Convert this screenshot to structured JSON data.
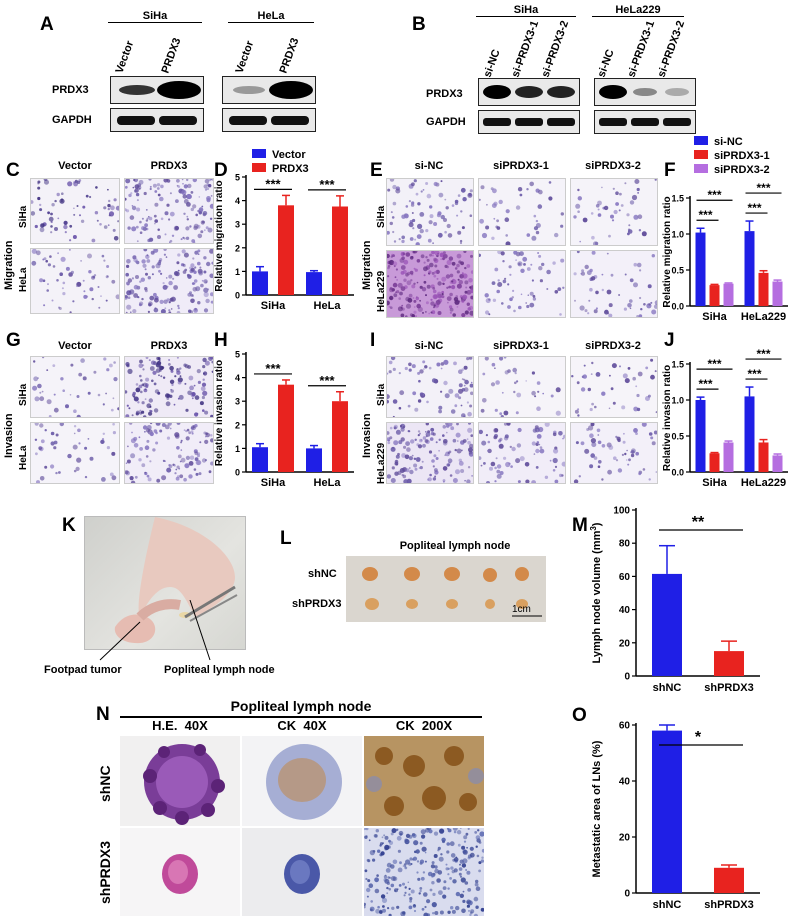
{
  "panels": {
    "A": {
      "letter": "A",
      "group_labels": [
        "SiHa",
        "HeLa"
      ],
      "lanes": [
        "Vector",
        "PRDX3",
        "Vector",
        "PRDX3"
      ],
      "rows": [
        "PRDX3",
        "GAPDH"
      ]
    },
    "B": {
      "letter": "B",
      "group_labels": [
        "SiHa",
        "HeLa229"
      ],
      "lanes": [
        "si-NC",
        "si-PRDX3-1",
        "si-PRDX3-2",
        "si-NC",
        "si-PRDX3-1",
        "si-PRDX3-2"
      ],
      "rows": [
        "PRDX3",
        "GAPDH"
      ]
    },
    "C": {
      "letter": "C",
      "cols": [
        "Vector",
        "PRDX3"
      ],
      "row_group": "Migration",
      "rows": [
        "SiHa",
        "HeLa"
      ]
    },
    "E": {
      "letter": "E",
      "cols": [
        "si-NC",
        "siPRDX3-1",
        "siPRDX3-2"
      ],
      "row_group": "Migration",
      "rows": [
        "SiHa",
        "HeLa229"
      ]
    },
    "G": {
      "letter": "G",
      "cols": [
        "Vector",
        "PRDX3"
      ],
      "row_group": "Invasion",
      "rows": [
        "SiHa",
        "HeLa"
      ]
    },
    "I": {
      "letter": "I",
      "cols": [
        "si-NC",
        "siPRDX3-1",
        "siPRDX3-2"
      ],
      "row_group": "Invasion",
      "rows": [
        "SiHa",
        "HeLa229"
      ]
    },
    "K": {
      "letter": "K",
      "labels": [
        "Footpad tumor",
        "Popliteal lymph node"
      ]
    },
    "L": {
      "letter": "L",
      "title": "Popliteal lymph node",
      "rows": [
        "shNC",
        "shPRDX3"
      ],
      "scale": "1cm"
    },
    "N": {
      "letter": "N",
      "title": "Popliteal lymph node",
      "cols": [
        "H.E.  40X",
        "CK  40X",
        "CK  200X"
      ],
      "rows": [
        "shNC",
        "shPRDX3"
      ]
    }
  },
  "colors": {
    "blue": "#1f1fe6",
    "red": "#e8231f",
    "purple": "#b56ee0"
  },
  "chart_data": [
    {
      "id": "D",
      "letter": "D",
      "type": "bar",
      "categories": [
        "SiHa",
        "HeLa"
      ],
      "series": [
        {
          "name": "Vector",
          "values": [
            1.0,
            0.97
          ],
          "errors": [
            0.2,
            0.06
          ]
        },
        {
          "name": "PRDX3",
          "values": [
            3.8,
            3.75
          ],
          "errors": [
            0.42,
            0.45
          ]
        }
      ],
      "ylabel": "Relative migration ratio",
      "ylim": [
        0,
        5
      ],
      "yticks": [
        "0",
        "1",
        "2",
        "3",
        "4",
        "5"
      ],
      "significance": [
        "***",
        "***"
      ],
      "legend": "top"
    },
    {
      "id": "F",
      "letter": "F",
      "type": "bar",
      "categories": [
        "SiHa",
        "HeLa229"
      ],
      "series": [
        {
          "name": "si-NC",
          "values": [
            1.02,
            1.04
          ],
          "errors": [
            0.06,
            0.14
          ]
        },
        {
          "name": "siPRDX3-1",
          "values": [
            0.29,
            0.46
          ],
          "errors": [
            0.01,
            0.03
          ]
        },
        {
          "name": "siPRDX3-2",
          "values": [
            0.31,
            0.34
          ],
          "errors": [
            0.01,
            0.02
          ]
        }
      ],
      "ylabel": "Relative migration ratio",
      "ylim": [
        0,
        1.5
      ],
      "yticks": [
        "0.0",
        "0.5",
        "1.0",
        "1.5"
      ],
      "significance": [
        "***",
        "***",
        "***",
        "***"
      ],
      "legend": "top"
    },
    {
      "id": "H",
      "letter": "H",
      "type": "bar",
      "categories": [
        "SiHa",
        "HeLa"
      ],
      "series": [
        {
          "name": "Vector",
          "values": [
            1.05,
            1.0
          ],
          "errors": [
            0.15,
            0.12
          ]
        },
        {
          "name": "PRDX3",
          "values": [
            3.7,
            3.0
          ],
          "errors": [
            0.2,
            0.4
          ]
        }
      ],
      "ylabel": "Relative invasion ratio",
      "ylim": [
        0,
        5
      ],
      "yticks": [
        "0",
        "1",
        "2",
        "3",
        "4",
        "5"
      ],
      "significance": [
        "***",
        "***"
      ]
    },
    {
      "id": "J",
      "letter": "J",
      "type": "bar",
      "categories": [
        "SiHa",
        "HeLa229"
      ],
      "series": [
        {
          "name": "si-NC",
          "values": [
            1.0,
            1.05
          ],
          "errors": [
            0.04,
            0.13
          ]
        },
        {
          "name": "siPRDX3-1",
          "values": [
            0.26,
            0.41
          ],
          "errors": [
            0.01,
            0.04
          ]
        },
        {
          "name": "siPRDX3-2",
          "values": [
            0.41,
            0.23
          ],
          "errors": [
            0.02,
            0.02
          ]
        }
      ],
      "ylabel": "Relative invasion ratio",
      "ylim": [
        0,
        1.5
      ],
      "yticks": [
        "0.0",
        "0.5",
        "1.0",
        "1.5"
      ],
      "significance": [
        "***",
        "***",
        "***",
        "***"
      ]
    },
    {
      "id": "M",
      "letter": "M",
      "type": "bar",
      "categories": [
        "shNC",
        "shPRDX3"
      ],
      "values": [
        61.5,
        15.0
      ],
      "errors": [
        17.0,
        6.0
      ],
      "ylabel": "Lymph node volume (mm",
      "ylabel_sup": "3",
      "ylabel_end": ")",
      "ylim": [
        0,
        100
      ],
      "yticks": [
        "0",
        "20",
        "40",
        "60",
        "80",
        "100"
      ],
      "significance": "**"
    },
    {
      "id": "O",
      "letter": "O",
      "type": "bar",
      "categories": [
        "shNC",
        "shPRDX3"
      ],
      "values": [
        58.0,
        9.0
      ],
      "errors": [
        2.0,
        1.0
      ],
      "ylabel": "Metastatic area of LNs (%)",
      "ylim": [
        0,
        60
      ],
      "yticks": [
        "0",
        "20",
        "40",
        "60"
      ],
      "significance": "*"
    }
  ]
}
